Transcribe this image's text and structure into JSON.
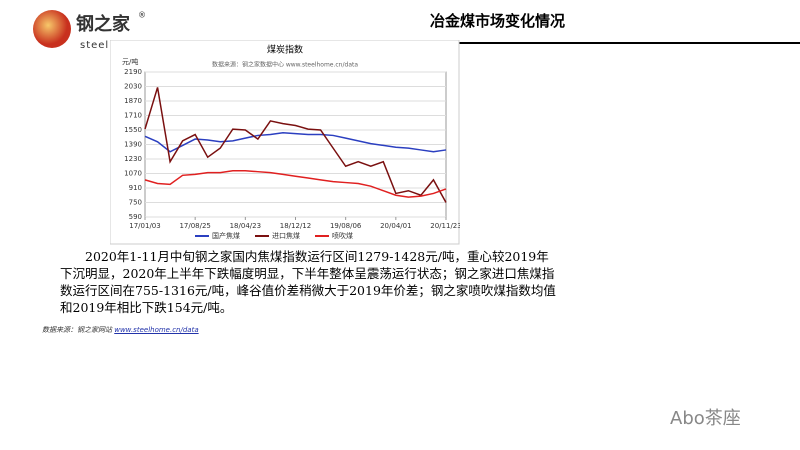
{
  "header": {
    "logo_name": "钢之家",
    "logo_sub": "steel",
    "logo_mark": "®",
    "title": "冶金煤市场变化情况"
  },
  "chart_data": {
    "type": "line",
    "title": "煤炭指数",
    "subtitle": "数据来源：钢之家数据中心 www.steelhome.cn/data",
    "y_label": "元/吨",
    "categories": [
      "17/01/03",
      null,
      null,
      null,
      "17/08/25",
      null,
      null,
      null,
      "18/04/23",
      null,
      null,
      null,
      "18/12/12",
      null,
      null,
      null,
      "19/08/06",
      null,
      null,
      null,
      "20/04/01",
      null,
      null,
      null,
      "20/11/23"
    ],
    "series": [
      {
        "name": "国产焦煤",
        "color": "#2b3fc0",
        "values": [
          1480,
          1420,
          1310,
          1380,
          1450,
          1440,
          1420,
          1430,
          1460,
          1490,
          1500,
          1520,
          1510,
          1500,
          1500,
          1490,
          1460,
          1430,
          1400,
          1380,
          1360,
          1350,
          1330,
          1310,
          1330
        ]
      },
      {
        "name": "进口焦煤",
        "color": "#7a1010",
        "values": [
          1560,
          2020,
          1200,
          1430,
          1500,
          1250,
          1350,
          1560,
          1550,
          1450,
          1650,
          1620,
          1600,
          1560,
          1550,
          1350,
          1150,
          1200,
          1150,
          1200,
          850,
          880,
          830,
          1000,
          750
        ]
      },
      {
        "name": "喷吹煤",
        "color": "#e02020",
        "values": [
          1000,
          960,
          950,
          1050,
          1060,
          1080,
          1080,
          1100,
          1100,
          1090,
          1080,
          1060,
          1040,
          1020,
          1000,
          980,
          970,
          960,
          930,
          880,
          830,
          810,
          820,
          850,
          900
        ]
      }
    ],
    "ylim": [
      590,
      2190
    ],
    "yticks": [
      590,
      750,
      910,
      1070,
      1230,
      1390,
      1550,
      1710,
      1870,
      2030,
      2190
    ],
    "grid": true,
    "legend": "bottom"
  },
  "paragraph": "2020年1-11月中旬钢之家国内焦煤指数运行区间1279-1428元/吨，重心较2019年下沉明显，2020年上半年下跌幅度明显，下半年整体呈震荡运行状态；钢之家进口焦煤指数运行区间在755-1316元/吨，峰谷值价差稍微大于2019年价差；钢之家喷吹煤指数均值和2019年相比下跌154元/吨。",
  "source": {
    "label": "数据来源：钢之家网站",
    "link": "www.steelhome.cn/data"
  },
  "watermark": "Abo茶座"
}
